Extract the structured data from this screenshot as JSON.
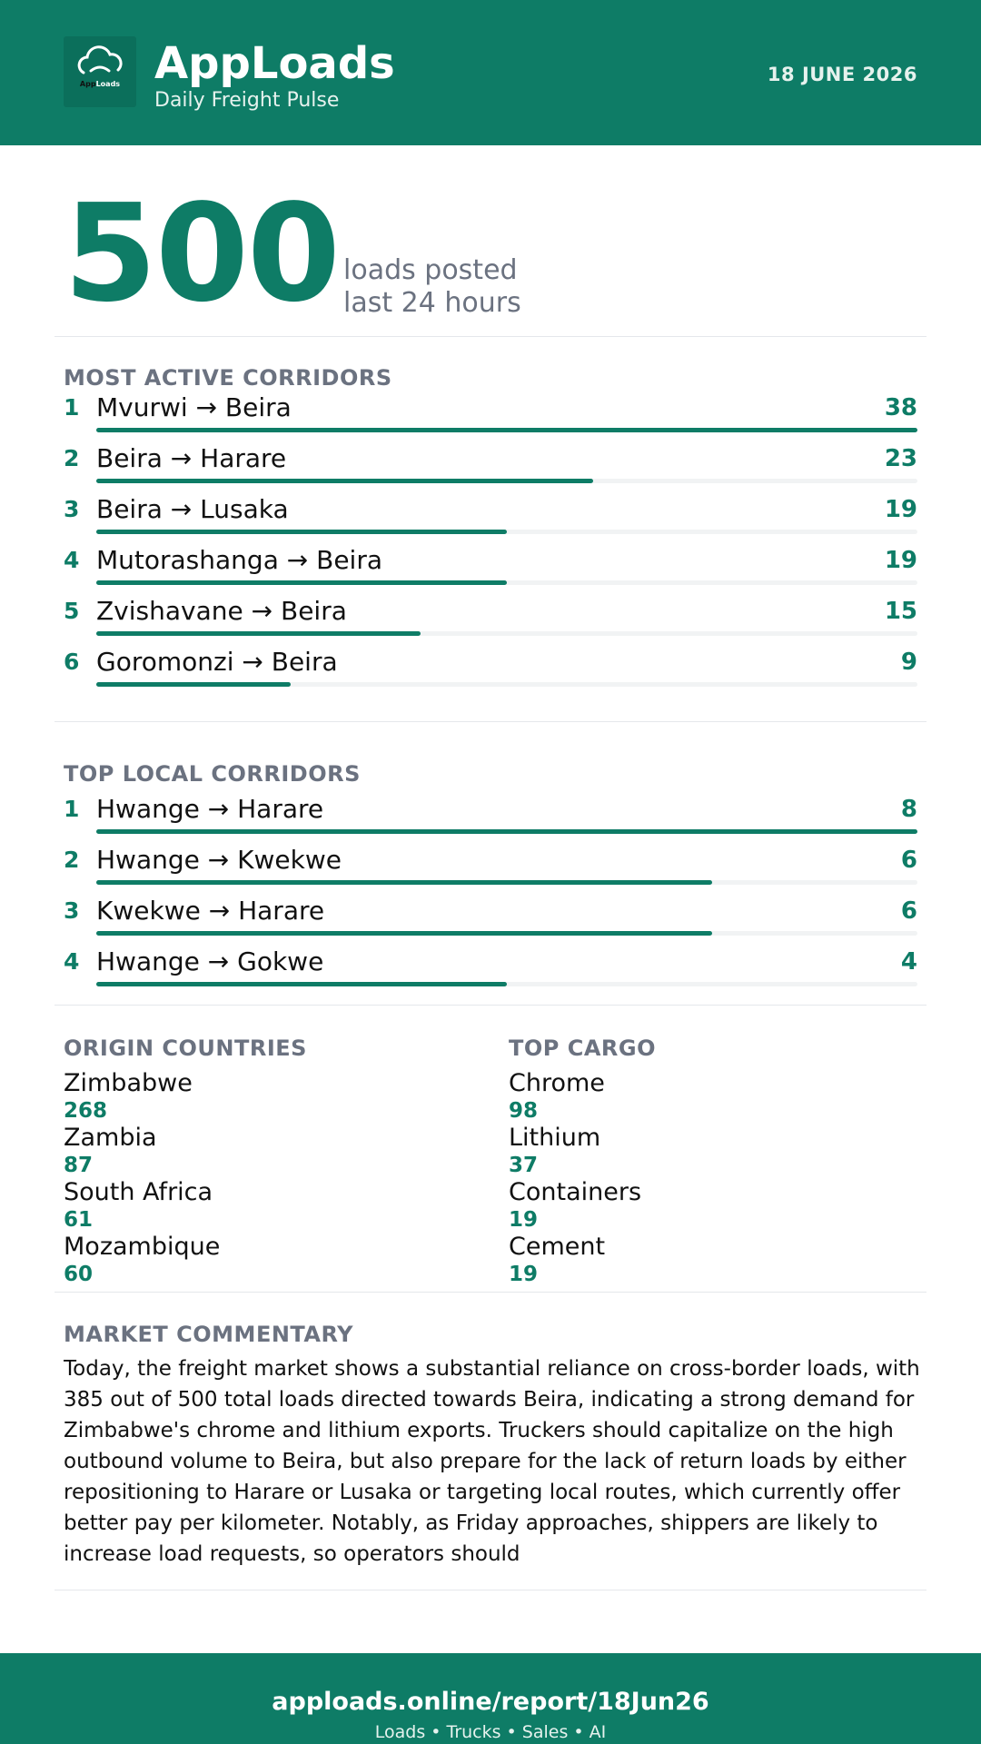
{
  "header": {
    "logo_text_dark": "App",
    "logo_text_light": "Loads",
    "title": "AppLoads",
    "subtitle": "Daily Freight Pulse",
    "date": "18 JUNE 2026"
  },
  "hero": {
    "count": "500",
    "label_line1": "loads posted",
    "label_line2": "last 24 hours"
  },
  "most_active": {
    "title": "MOST ACTIVE CORRIDORS",
    "items": [
      {
        "rank": "1",
        "route": "Mvurwi → Beira",
        "count": "38",
        "share": 1.0
      },
      {
        "rank": "2",
        "route": "Beira → Harare",
        "count": "23",
        "share": 0.605
      },
      {
        "rank": "3",
        "route": "Beira → Lusaka",
        "count": "19",
        "share": 0.5
      },
      {
        "rank": "4",
        "route": "Mutorashanga → Beira",
        "count": "19",
        "share": 0.5
      },
      {
        "rank": "5",
        "route": "Zvishavane → Beira",
        "count": "15",
        "share": 0.395
      },
      {
        "rank": "6",
        "route": "Goromonzi → Beira",
        "count": "9",
        "share": 0.237
      }
    ]
  },
  "top_local": {
    "title": "TOP LOCAL CORRIDORS",
    "items": [
      {
        "rank": "1",
        "route": "Hwange → Harare",
        "count": "8",
        "share": 1.0
      },
      {
        "rank": "2",
        "route": "Hwange → Kwekwe",
        "count": "6",
        "share": 0.75
      },
      {
        "rank": "3",
        "route": "Kwekwe → Harare",
        "count": "6",
        "share": 0.75
      },
      {
        "rank": "4",
        "route": "Hwange → Gokwe",
        "count": "4",
        "share": 0.5
      }
    ]
  },
  "origin_countries": {
    "title": "ORIGIN COUNTRIES",
    "items": [
      {
        "name": "Zimbabwe",
        "count": "268"
      },
      {
        "name": "Zambia",
        "count": "87"
      },
      {
        "name": "South Africa",
        "count": "61"
      },
      {
        "name": "Mozambique",
        "count": "60"
      }
    ]
  },
  "top_cargo": {
    "title": "TOP CARGO",
    "items": [
      {
        "name": "Chrome",
        "count": "98"
      },
      {
        "name": "Lithium",
        "count": "37"
      },
      {
        "name": "Containers",
        "count": "19"
      },
      {
        "name": "Cement",
        "count": "19"
      }
    ]
  },
  "commentary": {
    "title": "MARKET COMMENTARY",
    "text": "Today, the freight market shows a substantial reliance on cross-border loads, with 385 out of 500 total loads directed towards Beira, indicating a strong demand for Zimbabwe's chrome and lithium exports. Truckers should capitalize on the high outbound volume to Beira, but also prepare for the lack of return loads by either repositioning to Harare or Lusaka or targeting local routes, which currently offer better pay per kilometer. Notably, as Friday approaches, shippers are likely to increase load requests, so operators should"
  },
  "footer": {
    "url": "apploads.online/report/18Jun26",
    "tagline": "Loads • Trucks • Sales • AI"
  },
  "colors": {
    "brand": "#0e7c66",
    "muted": "#6b7280",
    "track": "#f1f3f4"
  },
  "icons": {
    "logo": "cloud-truck-icon"
  }
}
